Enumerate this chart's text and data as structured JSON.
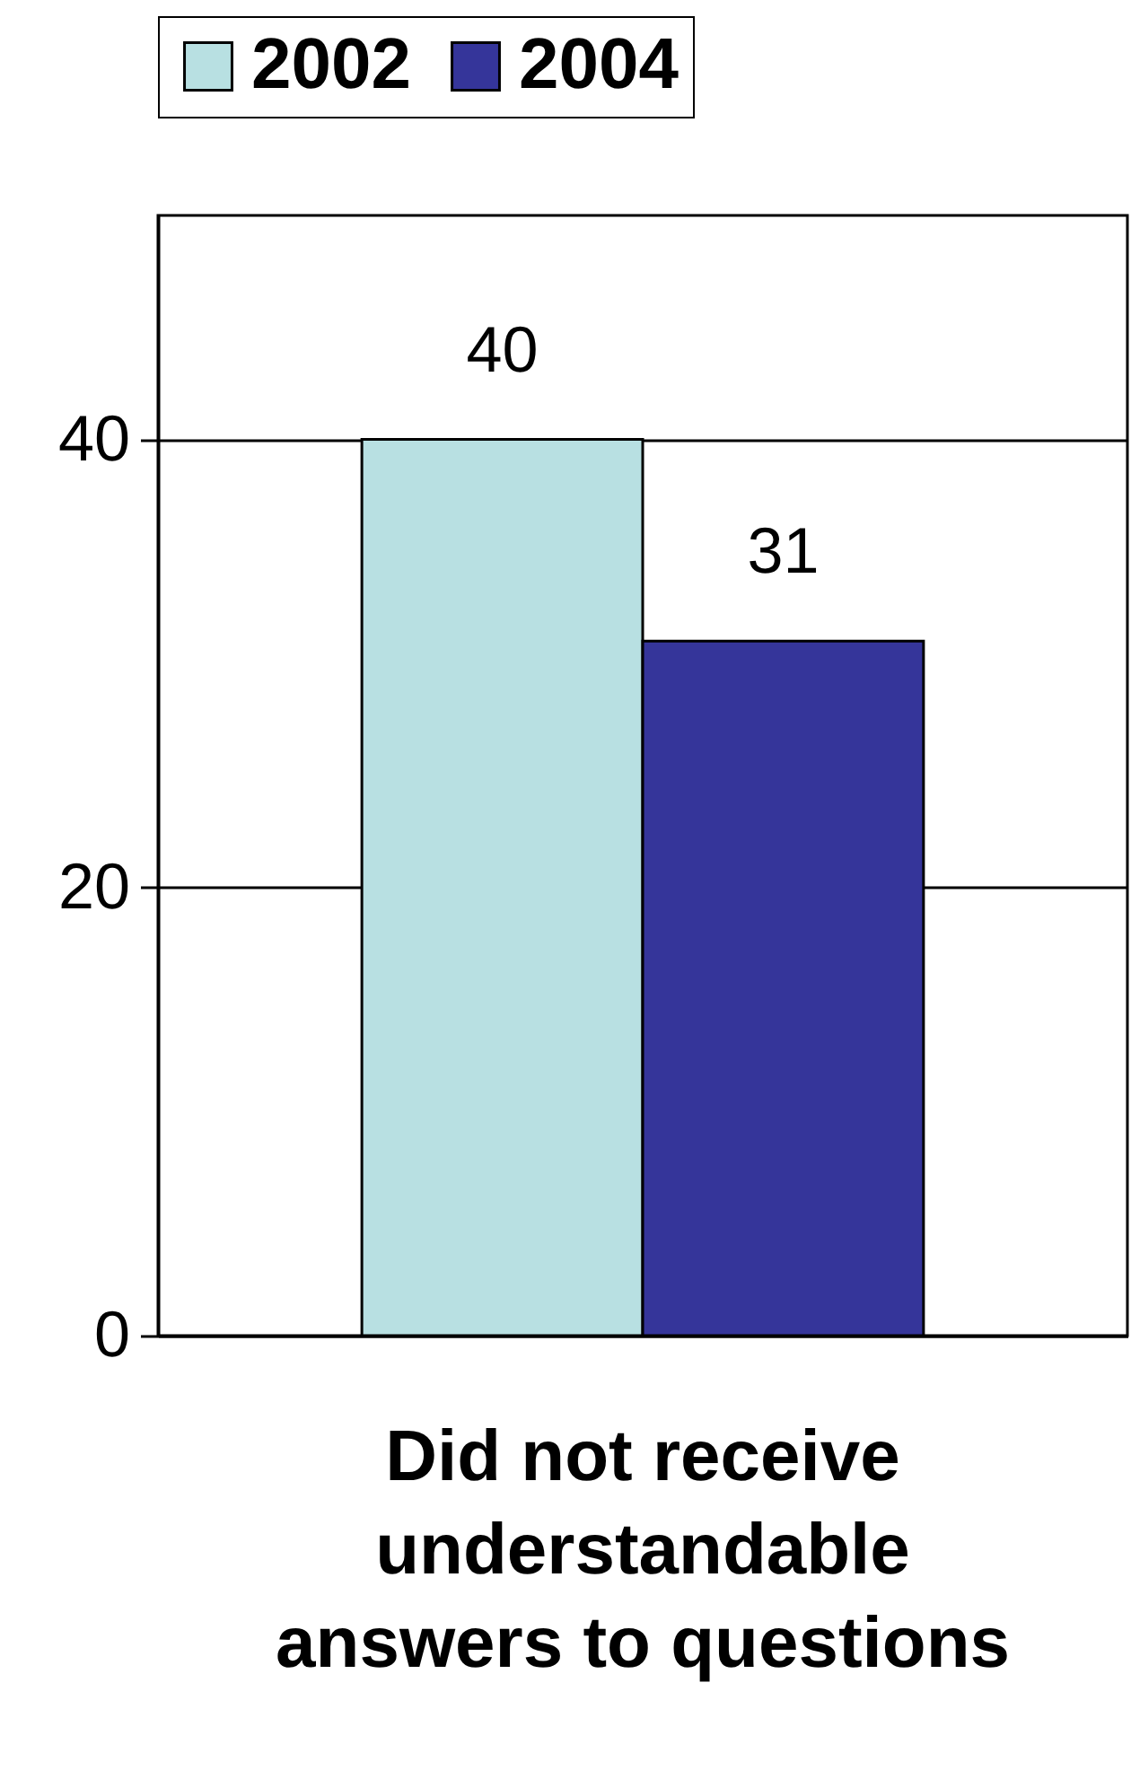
{
  "chart_data": {
    "type": "bar",
    "categories": [
      "Did not receive understandable answers to questions"
    ],
    "series": [
      {
        "name": "2002",
        "color": "#b8e0e2",
        "values": [
          40
        ]
      },
      {
        "name": "2004",
        "color": "#35359a",
        "values": [
          31
        ]
      }
    ],
    "ylim": [
      0,
      50
    ],
    "yticks": [
      0,
      20,
      40
    ],
    "grid": "y",
    "legend": "top",
    "data_labels": true
  }
}
